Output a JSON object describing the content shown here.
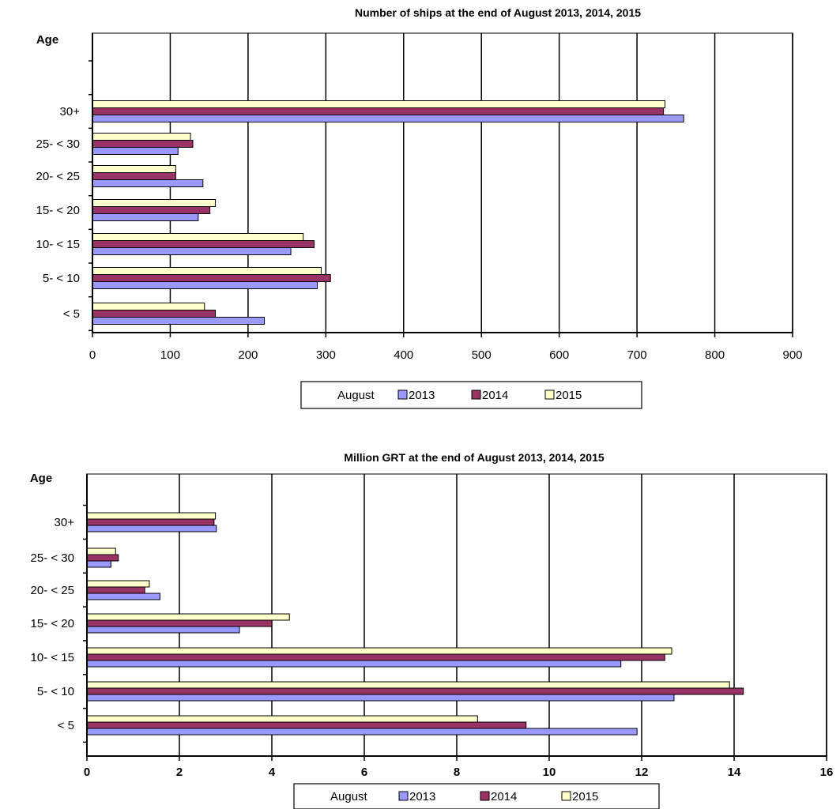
{
  "colors": {
    "s2013": "#9999ff",
    "s2014": "#993366",
    "s2015": "#ffffcc",
    "grid": "#000000",
    "plot_border": "#808080"
  },
  "chart_data": [
    {
      "type": "bar",
      "orientation": "horizontal",
      "title": "Number of ships at the end of August 2013, 2014, 2015",
      "ylabel": "Age",
      "categories": [
        "< 5",
        "5- < 10",
        "10- < 15",
        "15- < 20",
        "20- < 25",
        "25- < 30",
        "30+"
      ],
      "series": [
        {
          "name": "2013",
          "color": "#9999ff",
          "values": [
            221,
            289,
            255,
            136,
            142,
            110,
            760
          ]
        },
        {
          "name": "2014",
          "color": "#993366",
          "values": [
            158,
            306,
            285,
            151,
            107,
            129,
            734
          ]
        },
        {
          "name": "2015",
          "color": "#ffffcc",
          "values": [
            144,
            294,
            271,
            158,
            107,
            126,
            736
          ]
        }
      ],
      "xlim": [
        0,
        900
      ],
      "xticks": [
        0,
        100,
        200,
        300,
        400,
        500,
        600,
        700,
        800,
        900
      ],
      "xtick_labels": [
        "0",
        "100",
        "200",
        "300",
        "400",
        "500",
        "600",
        "700",
        "800",
        "900"
      ],
      "grid": true,
      "legend": {
        "placement": "bottom",
        "title": "August",
        "labels": [
          "2013",
          "2014",
          "2015"
        ]
      }
    },
    {
      "type": "bar",
      "orientation": "horizontal",
      "title": "Million GRT at the end of August 2013, 2014, 2015",
      "ylabel": "Age",
      "categories": [
        "< 5",
        "5- < 10",
        "10- < 15",
        "15- < 20",
        "20- < 25",
        "25- < 30",
        "30+"
      ],
      "series": [
        {
          "name": "2013",
          "color": "#9999ff",
          "values": [
            11.9,
            12.7,
            11.55,
            3.3,
            1.58,
            0.52,
            2.8
          ]
        },
        {
          "name": "2014",
          "color": "#993366",
          "values": [
            9.5,
            14.2,
            12.5,
            4.0,
            1.25,
            0.68,
            2.75
          ]
        },
        {
          "name": "2015",
          "color": "#ffffcc",
          "values": [
            8.45,
            13.9,
            12.65,
            4.38,
            1.35,
            0.62,
            2.78
          ]
        }
      ],
      "xlim": [
        0,
        16
      ],
      "xticks": [
        0,
        2,
        4,
        6,
        8,
        10,
        12,
        14,
        16
      ],
      "xtick_labels": [
        "0",
        "2",
        "4",
        "6",
        "8",
        "10",
        "12",
        "14",
        "16"
      ],
      "grid": true,
      "legend": {
        "placement": "bottom",
        "title": "August",
        "labels": [
          "2013",
          "2014",
          "2015"
        ]
      }
    }
  ]
}
